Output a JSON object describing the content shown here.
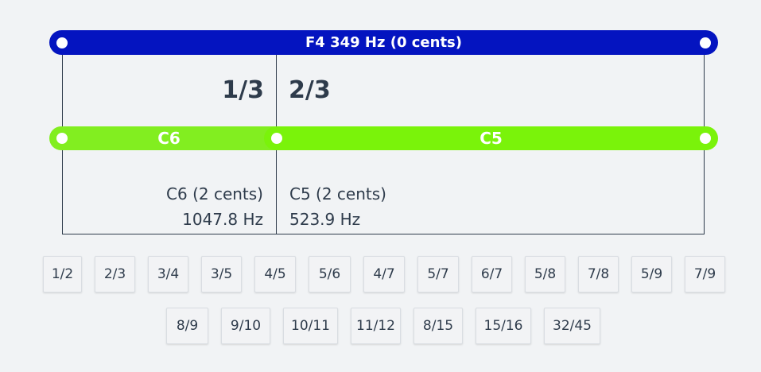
{
  "colors": {
    "string_bar": "#0414c0",
    "segment_left": "#82ee20",
    "segment_right": "#7af30a",
    "line": "#2e3b4b",
    "background": "#f1f3f5"
  },
  "string": {
    "label": "F4 349 Hz (0 cents)"
  },
  "ratios": {
    "left": "1/3",
    "right": "2/3"
  },
  "segments": {
    "left": {
      "label": "C6",
      "note": "C6 (2 cents)",
      "freq": "1047.8 Hz"
    },
    "right": {
      "label": "C5",
      "note": "C5 (2 cents)",
      "freq": "523.9 Hz"
    }
  },
  "buttons_row1": [
    "1/2",
    "2/3",
    "3/4",
    "3/5",
    "4/5",
    "5/6",
    "4/7",
    "5/7",
    "6/7",
    "5/8",
    "7/8",
    "5/9",
    "7/9"
  ],
  "buttons_row2": [
    "8/9",
    "9/10",
    "10/11",
    "11/12",
    "8/15",
    "15/16",
    "32/45"
  ]
}
